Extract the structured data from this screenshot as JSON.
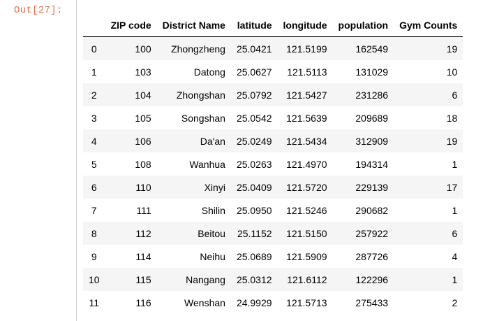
{
  "prompt": "Out[27]:",
  "table": {
    "columns": [
      "ZIP code",
      "District Name",
      "latitude",
      "longitude",
      "population",
      "Gym Counts"
    ],
    "rows": [
      {
        "index": "0",
        "cells": [
          "100",
          "Zhongzheng",
          "25.0421",
          "121.5199",
          "162549",
          "19"
        ]
      },
      {
        "index": "1",
        "cells": [
          "103",
          "Datong",
          "25.0627",
          "121.5113",
          "131029",
          "10"
        ]
      },
      {
        "index": "2",
        "cells": [
          "104",
          "Zhongshan",
          "25.0792",
          "121.5427",
          "231286",
          "6"
        ]
      },
      {
        "index": "3",
        "cells": [
          "105",
          "Songshan",
          "25.0542",
          "121.5639",
          "209689",
          "18"
        ]
      },
      {
        "index": "4",
        "cells": [
          "106",
          "Da'an",
          "25.0249",
          "121.5434",
          "312909",
          "19"
        ]
      },
      {
        "index": "5",
        "cells": [
          "108",
          "Wanhua",
          "25.0263",
          "121.4970",
          "194314",
          "1"
        ]
      },
      {
        "index": "6",
        "cells": [
          "110",
          "Xinyi",
          "25.0409",
          "121.5720",
          "229139",
          "17"
        ]
      },
      {
        "index": "7",
        "cells": [
          "111",
          "Shilin",
          "25.0950",
          "121.5246",
          "290682",
          "1"
        ]
      },
      {
        "index": "8",
        "cells": [
          "112",
          "Beitou",
          "25.1152",
          "121.5150",
          "257922",
          "6"
        ]
      },
      {
        "index": "9",
        "cells": [
          "114",
          "Neihu",
          "25.0689",
          "121.5909",
          "287726",
          "4"
        ]
      },
      {
        "index": "10",
        "cells": [
          "115",
          "Nangang",
          "25.0312",
          "121.6112",
          "122296",
          "1"
        ]
      },
      {
        "index": "11",
        "cells": [
          "116",
          "Wenshan",
          "24.9929",
          "121.5713",
          "275433",
          "2"
        ]
      }
    ]
  }
}
